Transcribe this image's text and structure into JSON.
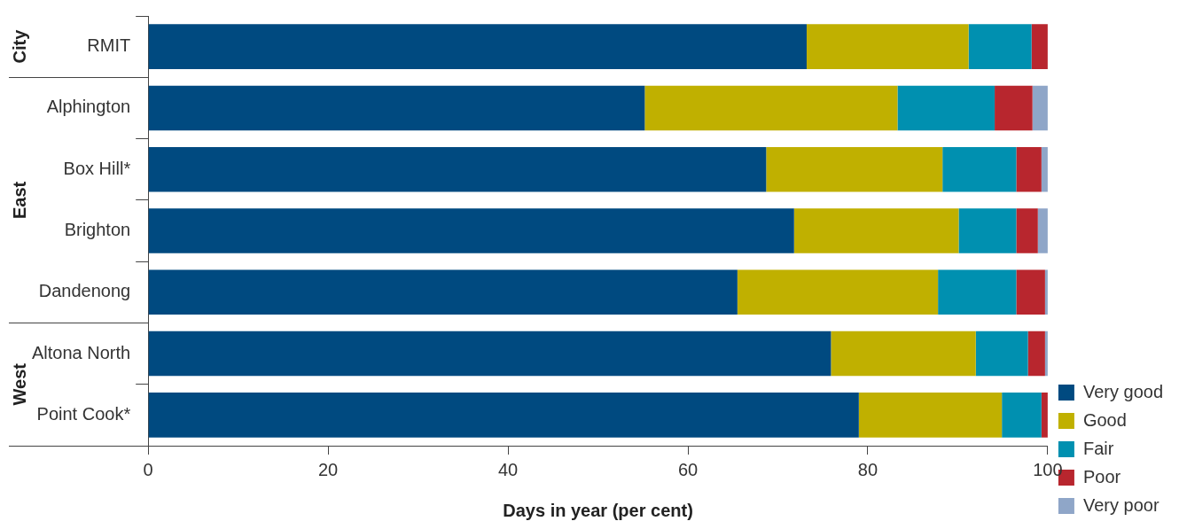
{
  "chart_data": {
    "type": "bar",
    "orientation": "horizontal",
    "stacked": true,
    "xlabel": "Days in year (per cent)",
    "categories": [
      "RMIT",
      "Alphington",
      "Box Hill*",
      "Brighton",
      "Dandenong",
      "Altona North",
      "Point Cook*"
    ],
    "series": [
      {
        "name": "Very good",
        "color": "#004a80",
        "values": [
          73.2,
          55.2,
          68.7,
          71.8,
          65.5,
          75.9,
          79.0
        ]
      },
      {
        "name": "Good",
        "color": "#c0b000",
        "values": [
          18.0,
          28.1,
          19.6,
          18.3,
          22.3,
          16.1,
          15.9
        ]
      },
      {
        "name": "Fair",
        "color": "#0090b0",
        "values": [
          7.0,
          10.8,
          8.2,
          6.4,
          8.7,
          5.8,
          4.4
        ]
      },
      {
        "name": "Poor",
        "color": "#b8262e",
        "values": [
          1.8,
          4.2,
          2.8,
          2.4,
          3.2,
          1.9,
          0.7
        ]
      },
      {
        "name": "Very poor",
        "color": "#8fa6c8",
        "values": [
          0,
          1.7,
          0.7,
          1.1,
          0.3,
          0.3,
          0
        ]
      }
    ],
    "xlim": [
      0,
      100
    ],
    "xticks": [
      0,
      20,
      40,
      60,
      80,
      100
    ],
    "grid": false,
    "legend": "right",
    "annotations": [
      "City",
      "East",
      "West"
    ]
  }
}
